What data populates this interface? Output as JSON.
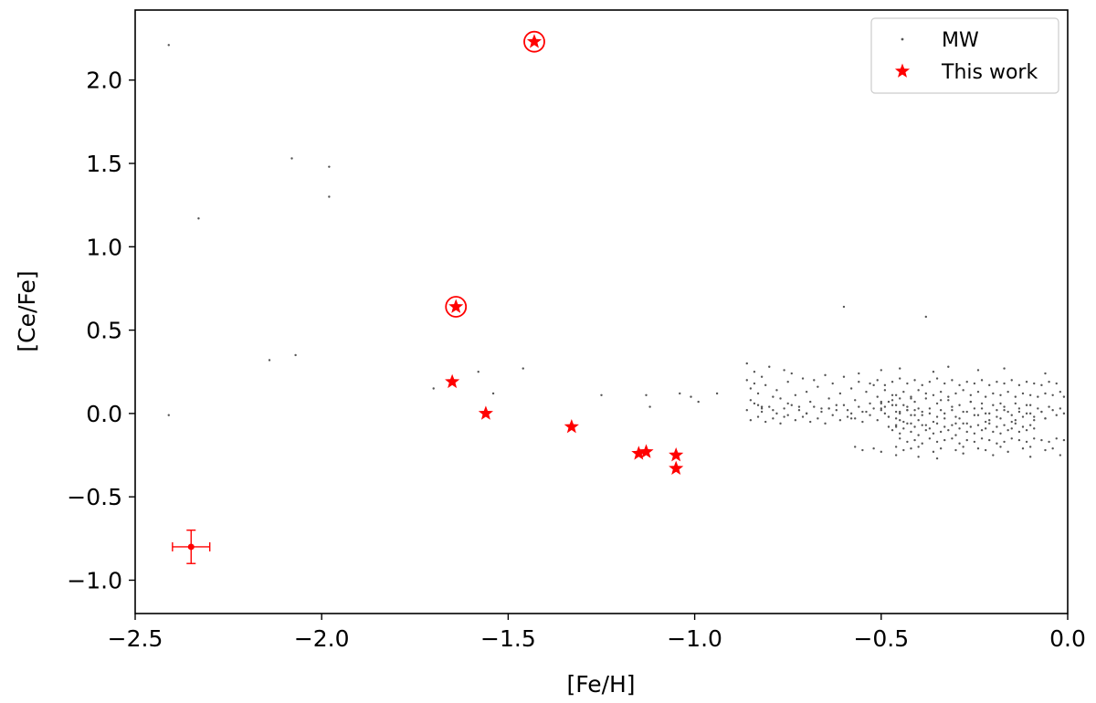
{
  "chart_data": {
    "type": "scatter",
    "title": "",
    "xlabel": "[Fe/H]",
    "ylabel": "[Ce/Fe]",
    "xlim": [
      -2.5,
      0.0
    ],
    "ylim": [
      -1.2,
      2.42
    ],
    "xticks": [
      -2.5,
      -2.0,
      -1.5,
      -1.0,
      -0.5,
      0.0
    ],
    "xtick_labels": [
      "−2.5",
      "−2.0",
      "−1.5",
      "−1.0",
      "−0.5",
      "0.0"
    ],
    "yticks": [
      -1.0,
      -0.5,
      0.0,
      0.5,
      1.0,
      1.5,
      2.0
    ],
    "ytick_labels": [
      "−1.0",
      "−0.5",
      "0.0",
      "0.5",
      "1.0",
      "1.5",
      "2.0"
    ],
    "grid": false,
    "legend_position": "top-right",
    "colors": {
      "mw": "#555555",
      "this_work": "#ff0000"
    },
    "series": [
      {
        "name": "MW",
        "marker": "point",
        "x": [
          -2.41,
          -2.33,
          -2.08,
          -1.98,
          -1.98,
          -2.14,
          -2.07,
          -2.41,
          -1.7,
          -1.58,
          -1.54,
          -1.46,
          -1.25,
          -1.13,
          -1.12,
          -1.04,
          -1.01,
          -0.99,
          -0.94,
          -0.6,
          -0.38,
          -0.86,
          -0.86,
          -0.85,
          -0.85,
          -0.84,
          -0.84,
          -0.83,
          -0.83,
          -0.82,
          -0.82,
          -0.81,
          -0.8,
          -0.79,
          -0.79,
          -0.78,
          -0.77,
          -0.76,
          -0.75,
          -0.75,
          -0.74,
          -0.73,
          -0.72,
          -0.71,
          -0.7,
          -0.69,
          -0.68,
          -0.67,
          -0.66,
          -0.65,
          -0.64,
          -0.63,
          -0.62,
          -0.61,
          -0.6,
          -0.59,
          -0.58,
          -0.57,
          -0.56,
          -0.55,
          -0.54,
          -0.53,
          -0.52,
          -0.51,
          -0.5,
          -0.49,
          -0.48,
          -0.47,
          -0.46,
          -0.45,
          -0.86,
          -0.85,
          -0.84,
          -0.83,
          -0.82,
          -0.81,
          -0.8,
          -0.79,
          -0.78,
          -0.77,
          -0.76,
          -0.75,
          -0.74,
          -0.73,
          -0.72,
          -0.71,
          -0.7,
          -0.69,
          -0.68,
          -0.67,
          -0.66,
          -0.65,
          -0.64,
          -0.63,
          -0.62,
          -0.61,
          -0.6,
          -0.59,
          -0.58,
          -0.57,
          -0.56,
          -0.55,
          -0.54,
          -0.53,
          -0.52,
          -0.51,
          -0.5,
          -0.49,
          -0.48,
          -0.47,
          -0.46,
          -0.45,
          -0.44,
          -0.43,
          -0.42,
          -0.41,
          -0.4,
          -0.5,
          -0.49,
          -0.48,
          -0.47,
          -0.46,
          -0.45,
          -0.44,
          -0.43,
          -0.42,
          -0.41,
          -0.4,
          -0.39,
          -0.38,
          -0.37,
          -0.36,
          -0.35,
          -0.34,
          -0.33,
          -0.32,
          -0.31,
          -0.3,
          -0.29,
          -0.28,
          -0.27,
          -0.26,
          -0.25,
          -0.24,
          -0.23,
          -0.22,
          -0.21,
          -0.2,
          -0.19,
          -0.18,
          -0.17,
          -0.16,
          -0.15,
          -0.14,
          -0.13,
          -0.12,
          -0.11,
          -0.1,
          -0.09,
          -0.08,
          -0.07,
          -0.06,
          -0.05,
          -0.04,
          -0.03,
          -0.02,
          -0.01,
          -0.48,
          -0.47,
          -0.46,
          -0.45,
          -0.44,
          -0.43,
          -0.42,
          -0.41,
          -0.4,
          -0.39,
          -0.38,
          -0.37,
          -0.36,
          -0.35,
          -0.34,
          -0.33,
          -0.32,
          -0.31,
          -0.3,
          -0.29,
          -0.28,
          -0.27,
          -0.26,
          -0.25,
          -0.24,
          -0.23,
          -0.22,
          -0.21,
          -0.2,
          -0.19,
          -0.18,
          -0.17,
          -0.16,
          -0.15,
          -0.14,
          -0.13,
          -0.12,
          -0.11,
          -0.1,
          -0.09,
          -0.46,
          -0.44,
          -0.42,
          -0.4,
          -0.38,
          -0.36,
          -0.34,
          -0.32,
          -0.3,
          -0.28,
          -0.26,
          -0.24,
          -0.22,
          -0.2,
          -0.18,
          -0.16,
          -0.14,
          -0.12,
          -0.1,
          -0.08,
          -0.06,
          -0.04,
          -0.02,
          -0.01,
          -0.45,
          -0.43,
          -0.41,
          -0.39,
          -0.37,
          -0.35,
          -0.33,
          -0.31,
          -0.29,
          -0.27,
          -0.25,
          -0.23,
          -0.21,
          -0.19,
          -0.17,
          -0.15,
          -0.13,
          -0.11,
          -0.09,
          -0.07,
          -0.05,
          -0.03,
          -0.01,
          -0.53,
          -0.51,
          -0.49,
          -0.47,
          -0.45,
          -0.43,
          -0.41,
          -0.39,
          -0.37,
          -0.35,
          -0.33,
          -0.31,
          -0.29,
          -0.27,
          -0.25,
          -0.23,
          -0.21,
          -0.19,
          -0.17,
          -0.15,
          -0.13,
          -0.11,
          -0.09,
          -0.07,
          -0.05,
          -0.03,
          -0.57,
          -0.55,
          -0.52,
          -0.5,
          -0.46,
          -0.44,
          -0.42,
          -0.4,
          -0.36,
          -0.34,
          -0.3,
          -0.28,
          -0.24,
          -0.22,
          -0.18,
          -0.16,
          -0.12,
          -0.1,
          -0.06,
          -0.04,
          -0.56,
          -0.5,
          -0.46,
          -0.45,
          -0.4,
          -0.36,
          -0.35,
          -0.32,
          -0.28,
          -0.24,
          -0.2,
          -0.17,
          -0.1,
          -0.06,
          -0.02,
          -0.82,
          -0.76,
          -0.7,
          -0.64,
          -0.58,
          -0.5,
          -0.46,
          -0.42,
          -0.38,
          -0.34,
          -0.3,
          -0.26,
          -0.22,
          -0.18,
          -0.14,
          -0.1,
          -0.06,
          -0.45,
          -0.43,
          -0.41,
          -0.39,
          -0.37,
          -0.35,
          -0.33,
          -0.31,
          -0.29,
          -0.27,
          -0.25,
          -0.23,
          -0.21,
          -0.19,
          -0.17,
          -0.15,
          -0.13,
          -0.11,
          -0.09,
          -0.07
        ],
        "y": [
          2.21,
          1.17,
          1.53,
          1.48,
          1.3,
          0.32,
          0.35,
          -0.01,
          0.15,
          0.25,
          0.12,
          0.27,
          0.11,
          0.11,
          0.04,
          0.12,
          0.1,
          0.07,
          0.12,
          0.64,
          0.58,
          0.3,
          0.2,
          0.15,
          0.08,
          0.25,
          0.18,
          0.12,
          0.05,
          0.03,
          0.22,
          0.17,
          0.28,
          0.1,
          0.02,
          0.14,
          0.09,
          0.26,
          0.19,
          0.06,
          0.24,
          0.11,
          0.04,
          0.21,
          0.13,
          0.07,
          0.2,
          0.16,
          0.03,
          0.23,
          0.09,
          0.18,
          0.05,
          0.12,
          0.22,
          0.02,
          0.15,
          0.08,
          0.19,
          0.01,
          0.13,
          0.06,
          0.17,
          0.1,
          0.03,
          0.14,
          0.07,
          0.11,
          0.05,
          0.09,
          0.02,
          -0.04,
          0.06,
          -0.02,
          0.01,
          -0.05,
          0.04,
          -0.03,
          0.0,
          -0.06,
          0.03,
          -0.01,
          0.05,
          -0.04,
          0.02,
          -0.02,
          0.0,
          -0.05,
          0.04,
          -0.03,
          0.01,
          -0.06,
          0.03,
          -0.01,
          0.02,
          -0.04,
          0.05,
          -0.02,
          0.0,
          -0.03,
          0.04,
          -0.05,
          0.01,
          -0.01,
          0.03,
          -0.04,
          0.02,
          0.0,
          -0.02,
          0.05,
          -0.03,
          0.01,
          -0.05,
          0.04,
          -0.01,
          0.02,
          -0.04,
          0.06,
          0.04,
          -0.02,
          0.08,
          0.01,
          -0.04,
          0.05,
          0.02,
          -0.06,
          0.07,
          0.03,
          -0.01,
          0.09,
          0.0,
          -0.05,
          0.06,
          0.02,
          -0.03,
          0.08,
          0.04,
          -0.02,
          0.05,
          0.01,
          -0.06,
          0.07,
          0.03,
          -0.01,
          0.06,
          0.0,
          -0.04,
          0.05,
          0.02,
          -0.03,
          0.04,
          0.01,
          -0.05,
          0.06,
          0.03,
          -0.02,
          0.05,
          0.0,
          -0.04,
          0.03,
          0.01,
          -0.03,
          0.04,
          0.02,
          -0.01,
          0.03,
          0.0,
          -0.08,
          -0.1,
          -0.07,
          -0.12,
          -0.09,
          -0.06,
          -0.11,
          -0.08,
          -0.13,
          -0.07,
          -0.1,
          -0.09,
          -0.12,
          -0.06,
          -0.11,
          -0.08,
          -0.1,
          -0.07,
          -0.13,
          -0.09,
          -0.06,
          -0.11,
          -0.08,
          -0.12,
          -0.07,
          -0.1,
          -0.09,
          -0.06,
          -0.11,
          -0.08,
          -0.12,
          -0.07,
          -0.1,
          -0.09,
          -0.06,
          -0.11,
          -0.08,
          -0.1,
          -0.07,
          -0.09,
          0.11,
          0.13,
          0.1,
          0.14,
          0.12,
          0.11,
          0.13,
          0.1,
          0.12,
          0.14,
          0.11,
          0.13,
          0.1,
          0.12,
          0.11,
          0.13,
          0.1,
          0.12,
          0.11,
          0.1,
          0.12,
          0.11,
          0.13,
          0.1,
          -0.15,
          -0.17,
          -0.16,
          -0.18,
          -0.15,
          -0.17,
          -0.16,
          -0.15,
          -0.18,
          -0.16,
          -0.17,
          -0.15,
          -0.16,
          -0.18,
          -0.17,
          -0.15,
          -0.16,
          -0.17,
          -0.15,
          -0.16,
          -0.17,
          -0.15,
          -0.16,
          0.18,
          0.2,
          0.17,
          0.19,
          0.21,
          0.18,
          0.2,
          0.17,
          0.19,
          0.21,
          0.18,
          0.2,
          0.17,
          0.19,
          0.18,
          0.2,
          0.17,
          0.19,
          0.18,
          0.2,
          0.17,
          0.19,
          0.18,
          0.17,
          0.19,
          0.18,
          -0.2,
          -0.22,
          -0.21,
          -0.23,
          -0.2,
          -0.22,
          -0.21,
          -0.2,
          -0.23,
          -0.21,
          -0.22,
          -0.2,
          -0.21,
          -0.22,
          -0.2,
          -0.23,
          -0.21,
          -0.2,
          -0.22,
          -0.21,
          0.24,
          0.26,
          -0.25,
          0.27,
          -0.26,
          0.25,
          -0.27,
          0.28,
          -0.24,
          0.26,
          -0.25,
          0.27,
          -0.26,
          0.24,
          -0.25,
          0.04,
          -0.02,
          0.0,
          0.03,
          -0.03,
          0.07,
          -0.08,
          0.09,
          -0.07,
          0.08,
          -0.06,
          0.07,
          -0.05,
          0.06,
          -0.04,
          0.05,
          -0.03,
          0.0,
          0.02,
          -0.01,
          0.01,
          0.03,
          -0.02,
          0.0,
          0.02,
          -0.03,
          0.01,
          -0.01,
          0.03,
          0.0,
          -0.02,
          0.02,
          -0.01,
          0.01,
          0.0,
          -0.02,
          0.01
        ]
      },
      {
        "name": "This work",
        "marker": "star",
        "x": [
          -1.43,
          -1.64,
          -1.65,
          -1.56,
          -1.33,
          -1.15,
          -1.13,
          -1.05,
          -1.05
        ],
        "y": [
          2.23,
          0.64,
          0.19,
          0.0,
          -0.08,
          -0.24,
          -0.23,
          -0.25,
          -0.33
        ],
        "circled": [
          true,
          true,
          false,
          false,
          false,
          false,
          false,
          false,
          false
        ]
      }
    ],
    "error_bar": {
      "x": -2.35,
      "y": -0.8,
      "xerr": 0.05,
      "yerr": 0.1
    }
  }
}
